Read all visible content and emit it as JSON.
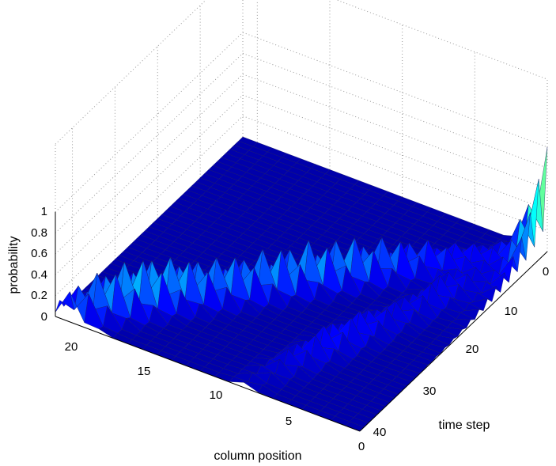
{
  "chart_data": {
    "type": "surface3d",
    "xlabel": "column position",
    "ylabel": "time step",
    "zlabel": "probability",
    "x_ticks": [
      "20",
      "15",
      "10",
      "5",
      "0"
    ],
    "y_ticks": [
      "0",
      "10",
      "20",
      "30",
      "40"
    ],
    "z_ticks": [
      "1",
      "0.8",
      "0.6",
      "0.4",
      "0.2",
      "0"
    ],
    "x_range": [
      0,
      21
    ],
    "y_range": [
      0,
      44
    ],
    "z_range": [
      0,
      1
    ],
    "grid": true,
    "colormap": [
      "#00008f",
      "#0000ff",
      "#00ffff",
      "#ffff00",
      "#ff0000",
      "#800000"
    ],
    "peaks": [
      {
        "time": 0,
        "column": 0,
        "probability": 1.0
      },
      {
        "time": 10,
        "column": 6,
        "probability": 0.4
      },
      {
        "time": 20,
        "column": 10,
        "probability": 0.45
      },
      {
        "time": 30,
        "column": 5,
        "probability": 0.25
      },
      {
        "time": 44,
        "column": 20,
        "probability": 0.55
      }
    ]
  }
}
